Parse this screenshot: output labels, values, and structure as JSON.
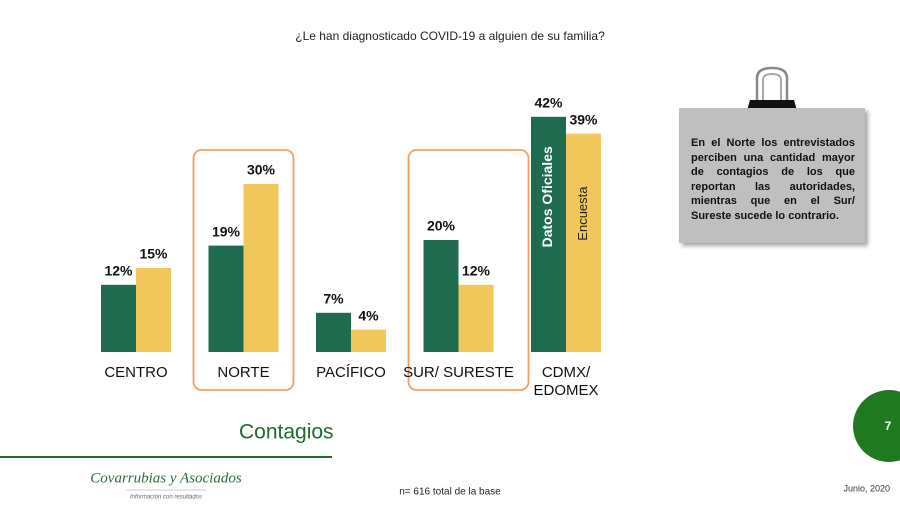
{
  "chart_data": {
    "type": "bar",
    "title": "¿Le han diagnosticado COVID-19 a alguien de su familia?",
    "subtitle": "Contagios",
    "categories": [
      "CENTRO",
      "NORTE",
      "PACÍFICO",
      "SUR/ SURESTE",
      "CDMX/\nEDOMEX"
    ],
    "series": [
      {
        "name": "Datos Oficiales",
        "color": "#1f6b4f",
        "values": [
          12,
          19,
          7,
          20,
          42
        ],
        "value_labels": [
          "12%",
          "19%",
          "7%",
          "20%",
          "42%"
        ]
      },
      {
        "name": "Encuesta",
        "color": "#f1c75b",
        "values": [
          15,
          30,
          4,
          12,
          39
        ],
        "value_labels": [
          "15%",
          "30%",
          "4%",
          "12%",
          "39%"
        ]
      }
    ],
    "ylim": [
      0,
      45
    ],
    "highlighted_categories": [
      1,
      3
    ],
    "highlight_color": "#f0a060"
  },
  "note": "En el Norte los entrevistados perciben una cantidad mayor de contagios de los que reportan las autoridades, mientras que en el Sur/ Sureste sucede lo contrario.",
  "footer": {
    "sample": "n= 616 total de la base",
    "date": "Junio, 2020",
    "page": "7",
    "logo": "Covarrubias y Asociados",
    "tagline": "Información con resultados"
  }
}
